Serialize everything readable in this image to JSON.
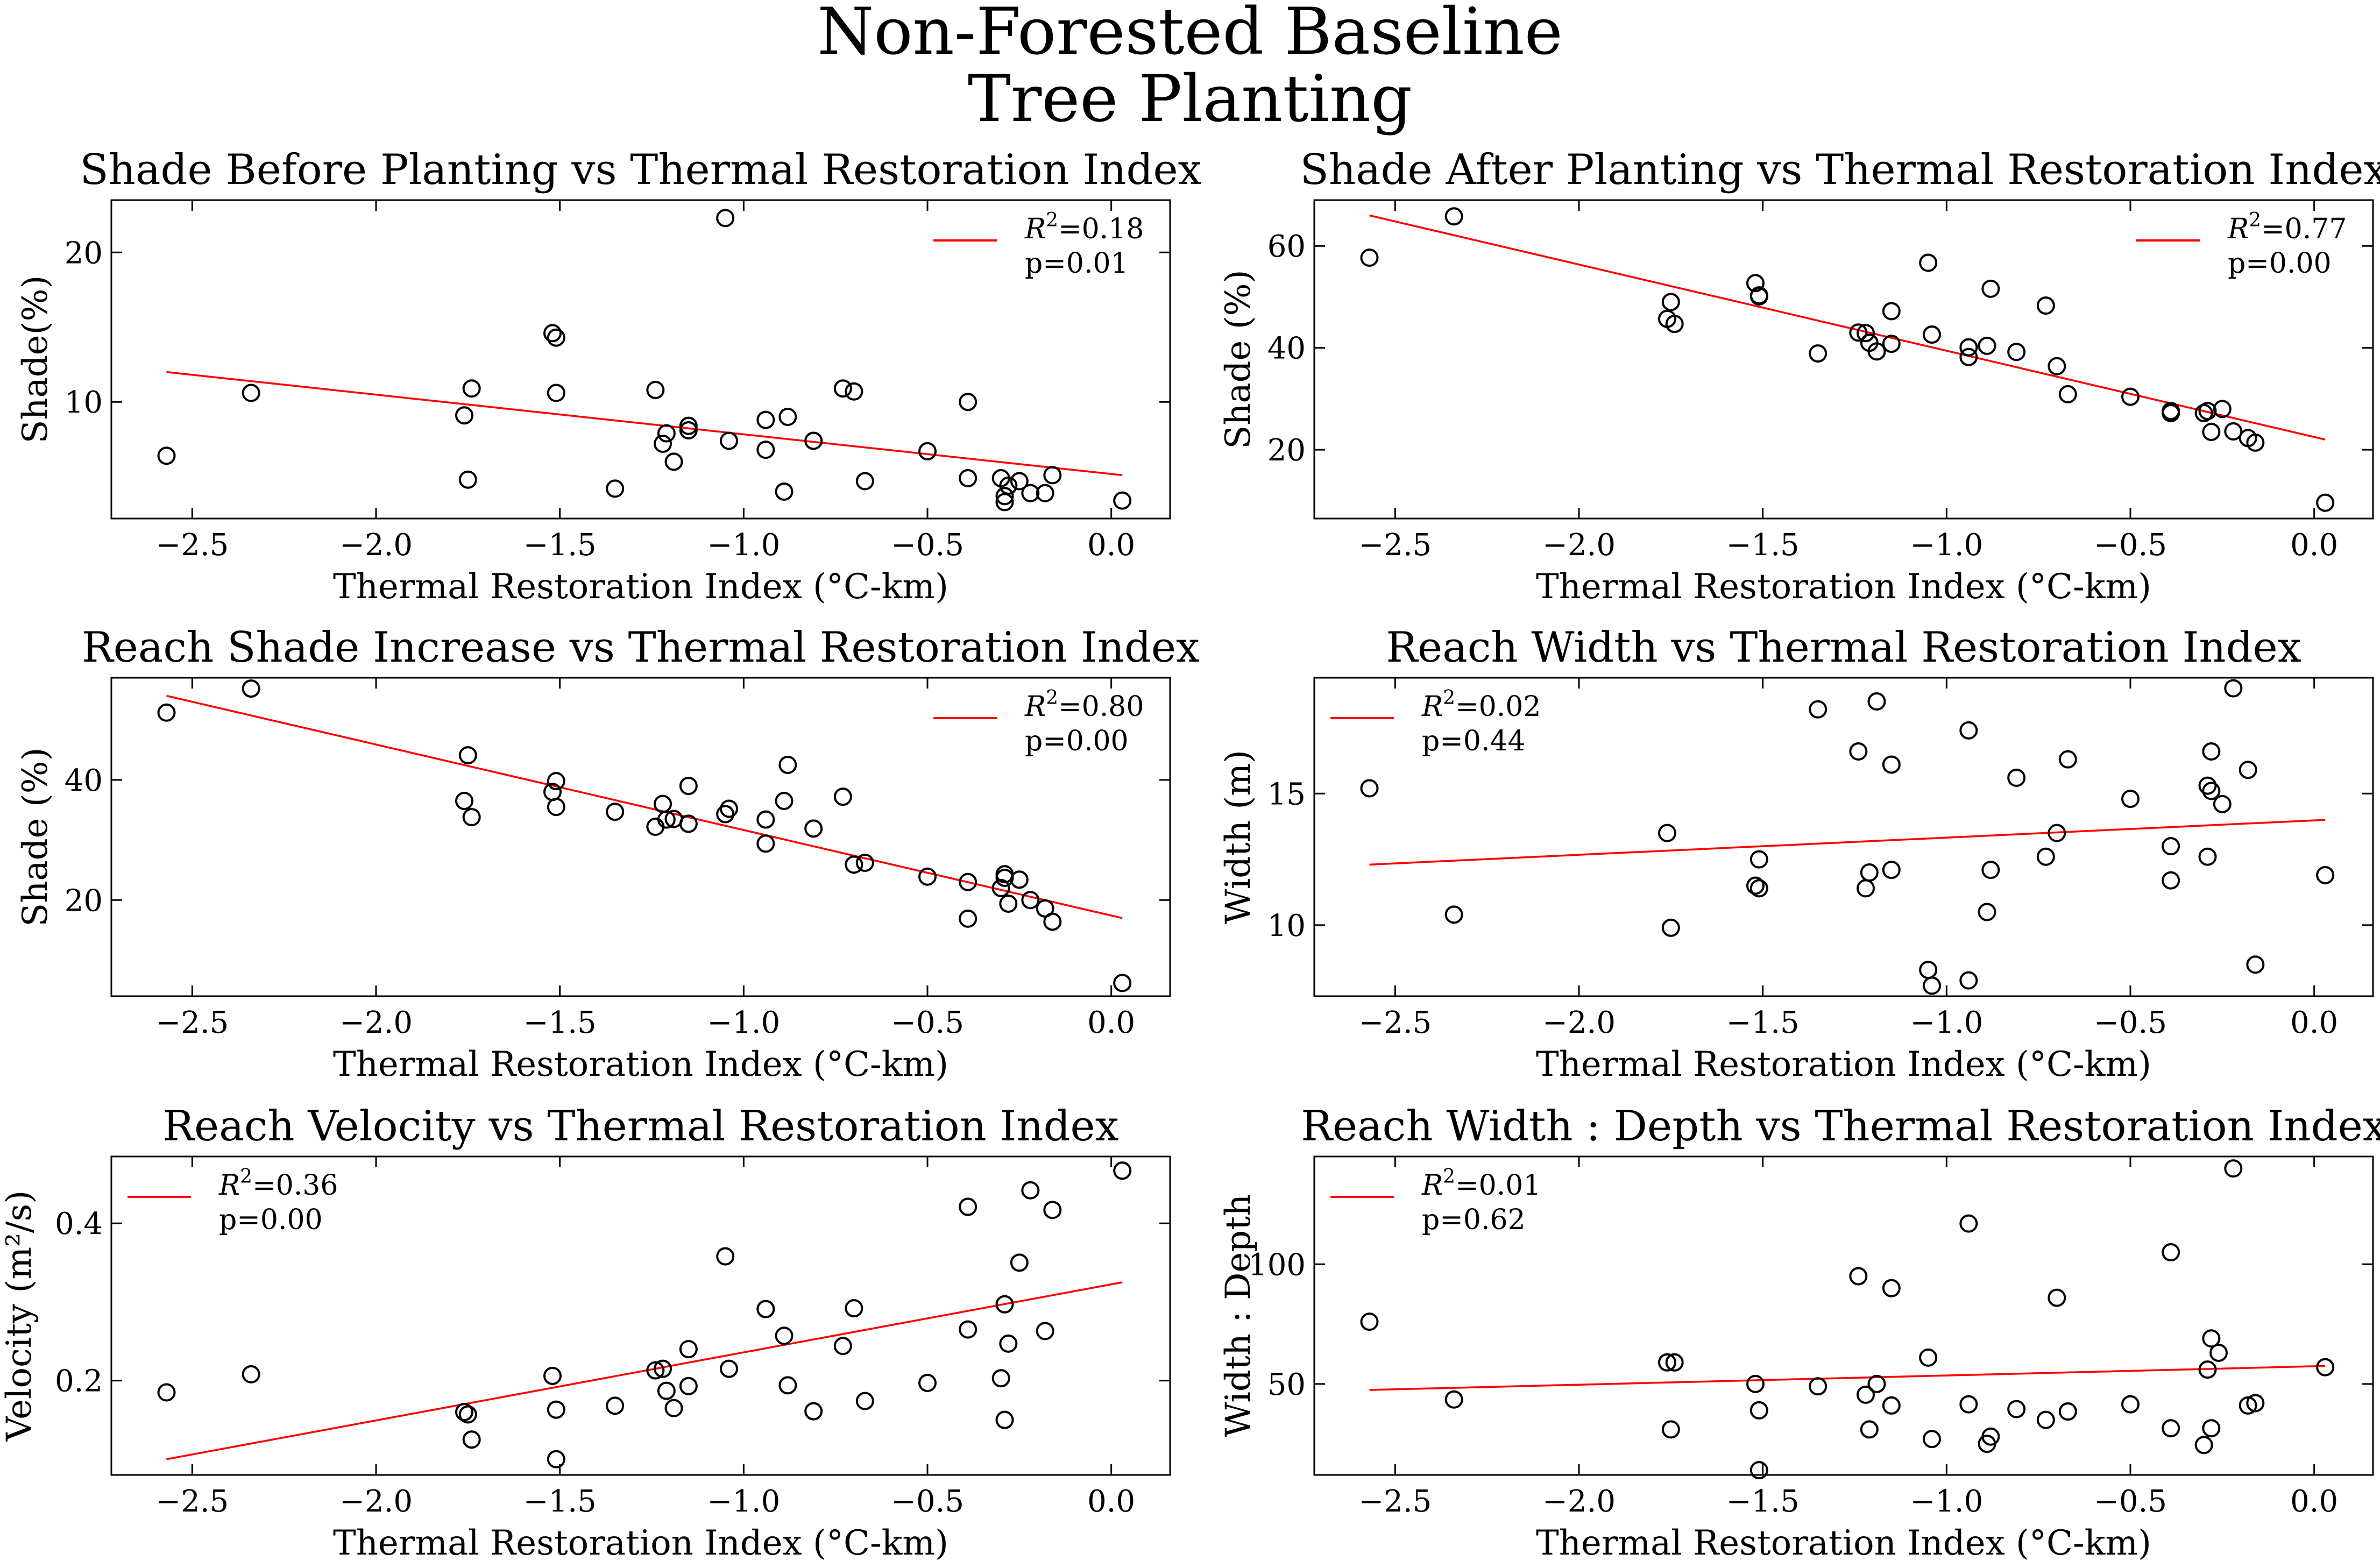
{
  "figure_title": [
    "Non-Forested Baseline",
    "Tree Planting"
  ],
  "chart_data": [
    {
      "type": "scatter",
      "title": "Shade Before Planting vs Thermal Restoration Index",
      "xlabel": "Thermal Restoration Index (°C-km)",
      "ylabel": "Shade(%)",
      "xlim": [
        -2.72,
        0.16
      ],
      "ylim": [
        2.2,
        23.5
      ],
      "xticks": [
        -2.5,
        -2.0,
        -1.5,
        -1.0,
        -0.5,
        0.0
      ],
      "xtick_labels": [
        "−2.5",
        "−2.0",
        "−1.5",
        "−1.0",
        "−0.5",
        "0.0"
      ],
      "yticks": [
        10,
        20
      ],
      "ytick_labels": [
        "10",
        "20"
      ],
      "legend": {
        "position": "upper right",
        "r2": "0.18",
        "p": "0.01"
      },
      "fit": {
        "x": [
          -2.57,
          0.03
        ],
        "y": [
          12.0,
          5.1
        ]
      },
      "points": {
        "x": [
          -2.57,
          -2.34,
          -1.76,
          -1.75,
          -1.74,
          -1.52,
          -1.51,
          -1.51,
          -1.35,
          -1.24,
          -1.22,
          -1.21,
          -1.19,
          -1.15,
          -1.15,
          -1.05,
          -1.04,
          -0.94,
          -0.94,
          -0.89,
          -0.88,
          -0.81,
          -0.73,
          -0.7,
          -0.67,
          -0.5,
          -0.39,
          -0.39,
          -0.3,
          -0.29,
          -0.29,
          -0.28,
          -0.25,
          -0.22,
          -0.18,
          -0.16,
          0.03
        ],
        "y": [
          6.4,
          10.6,
          9.1,
          4.8,
          10.9,
          14.6,
          14.3,
          10.6,
          4.2,
          10.8,
          7.2,
          7.9,
          6.0,
          8.4,
          8.1,
          22.3,
          7.4,
          8.8,
          6.8,
          4.0,
          9.0,
          7.4,
          10.9,
          10.7,
          4.7,
          6.7,
          10.0,
          4.9,
          4.9,
          3.3,
          3.7,
          4.4,
          4.7,
          3.9,
          3.9,
          5.1,
          3.4
        ]
      }
    },
    {
      "type": "scatter",
      "title": "Shade After Planting vs Thermal Restoration Index",
      "xlabel": "Thermal Restoration Index (°C-km)",
      "ylabel": "Shade (%)",
      "xlim": [
        -2.72,
        0.16
      ],
      "ylim": [
        6.5,
        69.0
      ],
      "xticks": [
        -2.5,
        -2.0,
        -1.5,
        -1.0,
        -0.5,
        0.0
      ],
      "xtick_labels": [
        "−2.5",
        "−2.0",
        "−1.5",
        "−1.0",
        "−0.5",
        "0.0"
      ],
      "yticks": [
        20,
        40,
        60
      ],
      "ytick_labels": [
        "20",
        "40",
        "60"
      ],
      "legend": {
        "position": "upper right",
        "r2": "0.77",
        "p": "0.00"
      },
      "fit": {
        "x": [
          -2.57,
          0.03
        ],
        "y": [
          66.0,
          22.0
        ]
      },
      "points": {
        "x": [
          -2.57,
          -2.34,
          -1.76,
          -1.75,
          -1.74,
          -1.52,
          -1.51,
          -1.51,
          -1.35,
          -1.24,
          -1.22,
          -1.21,
          -1.19,
          -1.15,
          -1.15,
          -1.05,
          -1.04,
          -0.94,
          -0.94,
          -0.89,
          -0.88,
          -0.81,
          -0.73,
          -0.7,
          -0.67,
          -0.5,
          -0.39,
          -0.39,
          -0.3,
          -0.29,
          -0.28,
          -0.25,
          -0.22,
          -0.18,
          -0.16,
          0.03
        ],
        "y": [
          57.7,
          65.8,
          45.7,
          49.0,
          44.7,
          52.7,
          50.3,
          50.1,
          38.9,
          43.0,
          42.9,
          41.0,
          39.3,
          47.2,
          40.8,
          56.7,
          42.6,
          40.1,
          38.2,
          40.4,
          51.6,
          39.2,
          48.3,
          36.4,
          30.9,
          30.4,
          27.2,
          27.6,
          27.2,
          27.6,
          23.5,
          28.0,
          23.6,
          22.3,
          21.4,
          9.6
        ]
      }
    },
    {
      "type": "scatter",
      "title": "Reach Shade Increase vs Thermal Restoration Index",
      "xlabel": "Thermal Restoration Index (°C-km)",
      "ylabel": "Shade (%)",
      "xlim": [
        -2.72,
        0.16
      ],
      "ylim": [
        4.0,
        57.0
      ],
      "xticks": [
        -2.5,
        -2.0,
        -1.5,
        -1.0,
        -0.5,
        0.0
      ],
      "xtick_labels": [
        "−2.5",
        "−2.0",
        "−1.5",
        "−1.0",
        "−0.5",
        "0.0"
      ],
      "yticks": [
        20,
        40
      ],
      "ytick_labels": [
        "20",
        "40"
      ],
      "legend": {
        "position": "upper right",
        "r2": "0.80",
        "p": "0.00"
      },
      "fit": {
        "x": [
          -2.57,
          0.03
        ],
        "y": [
          54.0,
          17.0
        ]
      },
      "points": {
        "x": [
          -2.57,
          -2.34,
          -1.76,
          -1.75,
          -1.74,
          -1.52,
          -1.51,
          -1.51,
          -1.35,
          -1.24,
          -1.22,
          -1.21,
          -1.19,
          -1.15,
          -1.15,
          -1.05,
          -1.04,
          -0.94,
          -0.94,
          -0.89,
          -0.88,
          -0.81,
          -0.73,
          -0.7,
          -0.67,
          -0.5,
          -0.39,
          -0.39,
          -0.3,
          -0.29,
          -0.29,
          -0.28,
          -0.25,
          -0.22,
          -0.18,
          -0.16,
          0.03
        ],
        "y": [
          51.2,
          55.2,
          36.5,
          44.1,
          33.8,
          38.0,
          39.8,
          35.5,
          34.7,
          32.2,
          36.0,
          33.4,
          33.5,
          39.0,
          32.7,
          34.3,
          35.2,
          29.4,
          33.4,
          36.5,
          42.5,
          31.9,
          37.2,
          25.9,
          26.2,
          23.9,
          16.9,
          23.0,
          22.0,
          24.3,
          23.7,
          19.4,
          23.4,
          20.0,
          18.6,
          16.4,
          6.2
        ]
      }
    },
    {
      "type": "scatter",
      "title": "Reach Width vs Thermal Restoration Index",
      "xlabel": "Thermal Restoration Index (°C-km)",
      "ylabel": "Width (m)",
      "xlim": [
        -2.72,
        0.16
      ],
      "ylim": [
        7.3,
        19.4
      ],
      "xticks": [
        -2.5,
        -2.0,
        -1.5,
        -1.0,
        -0.5,
        0.0
      ],
      "xtick_labels": [
        "−2.5",
        "−2.0",
        "−1.5",
        "−1.0",
        "−0.5",
        "0.0"
      ],
      "yticks": [
        10,
        15
      ],
      "ytick_labels": [
        "10",
        "15"
      ],
      "legend": {
        "position": "upper left",
        "r2": "0.02",
        "p": "0.44"
      },
      "fit": {
        "x": [
          -2.57,
          0.03
        ],
        "y": [
          12.3,
          14.0
        ]
      },
      "points": {
        "x": [
          -2.57,
          -2.34,
          -1.76,
          -1.75,
          -1.52,
          -1.51,
          -1.51,
          -1.35,
          -1.24,
          -1.22,
          -1.21,
          -1.19,
          -1.15,
          -1.15,
          -1.05,
          -1.04,
          -0.94,
          -0.94,
          -0.89,
          -0.88,
          -0.81,
          -0.73,
          -0.7,
          -0.67,
          -0.5,
          -0.39,
          -0.39,
          -0.29,
          -0.29,
          -0.28,
          -0.28,
          -0.25,
          -0.22,
          -0.18,
          -0.16,
          0.03
        ],
        "y": [
          15.2,
          10.4,
          13.5,
          9.9,
          11.5,
          11.4,
          12.5,
          18.2,
          16.6,
          11.4,
          12.0,
          18.5,
          16.1,
          12.1,
          8.3,
          7.7,
          17.4,
          7.9,
          10.5,
          12.1,
          15.6,
          12.6,
          13.5,
          16.3,
          14.8,
          13.0,
          11.7,
          12.6,
          15.3,
          16.6,
          15.1,
          14.6,
          19.0,
          15.9,
          8.5,
          11.9
        ]
      }
    },
    {
      "type": "scatter",
      "title": "Reach Velocity vs Thermal Restoration Index",
      "xlabel": "Thermal Restoration Index (°C-km)",
      "ylabel": "Velocity (m²/s)",
      "xlim": [
        -2.72,
        0.16
      ],
      "ylim": [
        0.08,
        0.485
      ],
      "xticks": [
        -2.5,
        -2.0,
        -1.5,
        -1.0,
        -0.5,
        0.0
      ],
      "xtick_labels": [
        "−2.5",
        "−2.0",
        "−1.5",
        "−1.0",
        "−0.5",
        "0.0"
      ],
      "yticks": [
        0.2,
        0.4
      ],
      "ytick_labels": [
        "0.2",
        "0.4"
      ],
      "legend": {
        "position": "upper left",
        "r2": "0.36",
        "p": "0.00"
      },
      "fit": {
        "x": [
          -2.57,
          0.03
        ],
        "y": [
          0.1,
          0.325
        ]
      },
      "points": {
        "x": [
          -2.57,
          -2.34,
          -1.76,
          -1.75,
          -1.74,
          -1.52,
          -1.51,
          -1.51,
          -1.35,
          -1.24,
          -1.22,
          -1.21,
          -1.19,
          -1.15,
          -1.15,
          -1.05,
          -1.04,
          -0.94,
          -0.94,
          -0.89,
          -0.88,
          -0.81,
          -0.73,
          -0.7,
          -0.67,
          -0.5,
          -0.39,
          -0.39,
          -0.3,
          -0.29,
          -0.29,
          -0.28,
          -0.25,
          -0.22,
          -0.18,
          -0.16,
          0.03
        ],
        "y": [
          0.185,
          0.208,
          0.16,
          0.157,
          0.125,
          0.206,
          0.163,
          0.1,
          0.168,
          0.213,
          0.215,
          0.187,
          0.165,
          0.24,
          0.193,
          0.358,
          0.215,
          0.291,
          0.291,
          0.257,
          0.194,
          0.161,
          0.244,
          0.292,
          0.174,
          0.197,
          0.421,
          0.265,
          0.203,
          0.15,
          0.297,
          0.247,
          0.35,
          0.442,
          0.263,
          0.417,
          0.467
        ]
      }
    },
    {
      "type": "scatter",
      "title": "Reach Width : Depth vs Thermal Restoration Index",
      "xlabel": "Thermal Restoration Index (°C-km)",
      "ylabel": "Width : Depth",
      "xlim": [
        -2.72,
        0.16
      ],
      "ylim": [
        12.0,
        145.0
      ],
      "xticks": [
        -2.5,
        -2.0,
        -1.5,
        -1.0,
        -0.5,
        0.0
      ],
      "xtick_labels": [
        "−2.5",
        "−2.0",
        "−1.5",
        "−1.0",
        "−0.5",
        "0.0"
      ],
      "yticks": [
        50,
        100
      ],
      "ytick_labels": [
        "50",
        "100"
      ],
      "legend": {
        "position": "upper left",
        "r2": "0.01",
        "p": "0.62"
      },
      "fit": {
        "x": [
          -2.57,
          0.03
        ],
        "y": [
          47.5,
          57.5
        ]
      },
      "points": {
        "x": [
          -2.57,
          -2.34,
          -1.76,
          -1.75,
          -1.74,
          -1.52,
          -1.51,
          -1.51,
          -1.35,
          -1.24,
          -1.22,
          -1.21,
          -1.19,
          -1.15,
          -1.15,
          -1.05,
          -1.04,
          -0.94,
          -0.94,
          -0.89,
          -0.88,
          -0.81,
          -0.73,
          -0.7,
          -0.67,
          -0.5,
          -0.39,
          -0.39,
          -0.3,
          -0.29,
          -0.28,
          -0.28,
          -0.26,
          -0.22,
          -0.18,
          -0.16,
          0.03
        ],
        "y": [
          76.0,
          43.5,
          59.0,
          31.0,
          59.0,
          50.0,
          39.0,
          14.0,
          49.0,
          95.0,
          45.5,
          31.0,
          50.0,
          90.0,
          41.0,
          61.0,
          27.0,
          41.5,
          117.0,
          25.0,
          28.0,
          39.5,
          35.0,
          86.0,
          38.5,
          41.5,
          105.0,
          31.5,
          24.5,
          56.0,
          31.5,
          69.0,
          63.0,
          140.0,
          41.0,
          42.0,
          57.0
        ]
      }
    }
  ]
}
